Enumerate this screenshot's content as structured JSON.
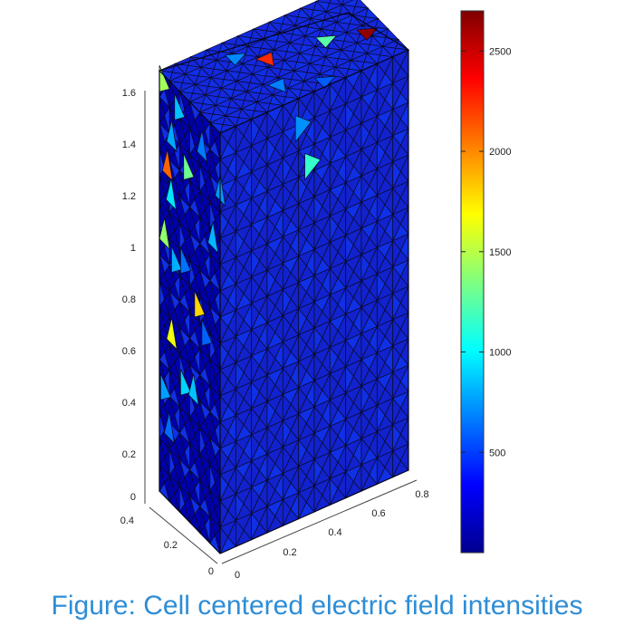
{
  "caption": "Figure: Cell centered electric field intensities",
  "chart_data": {
    "type": "heatmap",
    "subtype": "3d-tetrahedral-mesh-box",
    "title": "",
    "colormap": "jet",
    "color_range": [
      0,
      2700
    ],
    "colorbar": {
      "ticks": [
        500,
        1000,
        1500,
        2000,
        2500
      ],
      "tick_labels": [
        "500",
        "1000",
        "1500",
        "2000",
        "2500"
      ],
      "placement": "right"
    },
    "axes": {
      "z": {
        "range": [
          0,
          1.7
        ],
        "ticks": [
          "0",
          "0.2",
          "0.4",
          "0.6",
          "0.8",
          "1",
          "1.2",
          "1.4",
          "1.6"
        ]
      },
      "y": {
        "range": [
          0,
          0.4
        ],
        "ticks": [
          "0",
          "0.2",
          "0.4"
        ]
      },
      "x": {
        "range": [
          0,
          0.9
        ],
        "ticks": [
          "0",
          "0.2",
          "0.4",
          "0.6",
          "0.8"
        ]
      }
    },
    "grid": false,
    "background_value": 120,
    "highlighted_cells": [
      {
        "face": "top",
        "u": 0.52,
        "v": 0.88,
        "value": 2650
      },
      {
        "face": "top",
        "u": 0.35,
        "v": 0.4,
        "value": 2250
      },
      {
        "face": "front",
        "u": 0.05,
        "v": 0.77,
        "value": 2100
      },
      {
        "face": "front",
        "u": 0.58,
        "v": 0.5,
        "value": 1800
      },
      {
        "face": "front",
        "u": 0.12,
        "v": 0.38,
        "value": 1650
      },
      {
        "face": "front",
        "u": 0.0,
        "v": 0.95,
        "value": 1450
      },
      {
        "face": "front",
        "u": 0.0,
        "v": 0.6,
        "value": 1400
      },
      {
        "face": "front",
        "u": 0.4,
        "v": 0.8,
        "value": 1300
      },
      {
        "face": "top",
        "u": 0.4,
        "v": 0.7,
        "value": 1250
      },
      {
        "face": "side",
        "u": 0.45,
        "v": 0.8,
        "value": 1150
      },
      {
        "face": "front",
        "u": 0.11,
        "v": 0.71,
        "value": 950
      },
      {
        "face": "front",
        "u": 0.35,
        "v": 0.28,
        "value": 900
      },
      {
        "face": "front",
        "u": 0.48,
        "v": 0.3,
        "value": 850
      },
      {
        "face": "front",
        "u": 0.25,
        "v": 0.92,
        "value": 850
      },
      {
        "face": "front",
        "u": 0.8,
        "v": 0.71,
        "value": 820
      },
      {
        "face": "front",
        "u": 0.2,
        "v": 0.55,
        "value": 800
      },
      {
        "face": "front",
        "u": 0.12,
        "v": 0.85,
        "value": 780
      },
      {
        "face": "front",
        "u": 0.02,
        "v": 0.22,
        "value": 760
      },
      {
        "face": "front",
        "u": 0.92,
        "v": 0.84,
        "value": 740
      },
      {
        "face": "side",
        "u": 0.4,
        "v": 0.9,
        "value": 720
      },
      {
        "face": "top",
        "u": 0.15,
        "v": 0.3,
        "value": 700
      },
      {
        "face": "top",
        "u": 0.7,
        "v": 0.35,
        "value": 680
      },
      {
        "face": "front",
        "u": 0.62,
        "v": 0.9,
        "value": 660
      },
      {
        "face": "front",
        "u": 0.35,
        "v": 0.57,
        "value": 640
      },
      {
        "face": "front",
        "u": 0.08,
        "v": 0.15,
        "value": 620
      },
      {
        "face": "front",
        "u": 0.7,
        "v": 0.45,
        "value": 600
      },
      {
        "face": "top",
        "u": 0.85,
        "v": 0.55,
        "value": 580
      }
    ]
  }
}
